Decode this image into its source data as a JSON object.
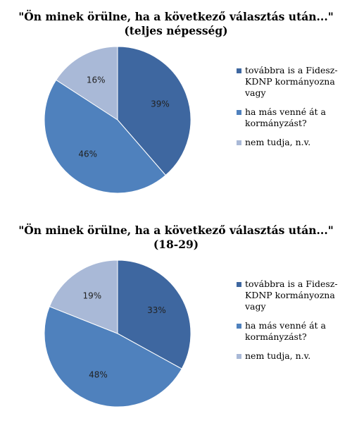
{
  "colors": [
    "#3E67A0",
    "#4F81BD",
    "#A9B9D7"
  ],
  "chart_data": [
    {
      "type": "pie",
      "title": "\"Ön minek örülne, ha a következő választás után...\"",
      "subtitle": "(teljes népesség)",
      "categories": [
        "továbbra is a Fidesz-KDNP kormányozna vagy",
        "ha más venné át a kormányzást?",
        "nem tudja, n.v."
      ],
      "values": [
        39,
        46,
        16
      ],
      "labels": [
        "39%",
        "46%",
        "16%"
      ],
      "legend_lines": [
        [
          "továbbra is a Fidesz-",
          "KDNP kormányozna",
          "vagy"
        ],
        [
          "ha más venné át a",
          "kormányzást?"
        ],
        [
          "nem tudja, n.v."
        ]
      ],
      "legend": "right"
    },
    {
      "type": "pie",
      "title": "\"Ön minek örülne, ha a következő választás után...\"",
      "subtitle": "(18-29)",
      "categories": [
        "továbbra is a Fidesz-KDNP kormányozna vagy",
        "ha más venné át a kormányzást?",
        "nem tudja, n.v."
      ],
      "values": [
        33,
        48,
        19
      ],
      "labels": [
        "33%",
        "48%",
        "19%"
      ],
      "legend_lines": [
        [
          "továbbra is a Fidesz-",
          "KDNP kormányozna",
          "vagy"
        ],
        [
          "ha más venné át a",
          "kormányzást?"
        ],
        [
          "nem tudja, n.v."
        ]
      ],
      "legend": "right"
    }
  ]
}
